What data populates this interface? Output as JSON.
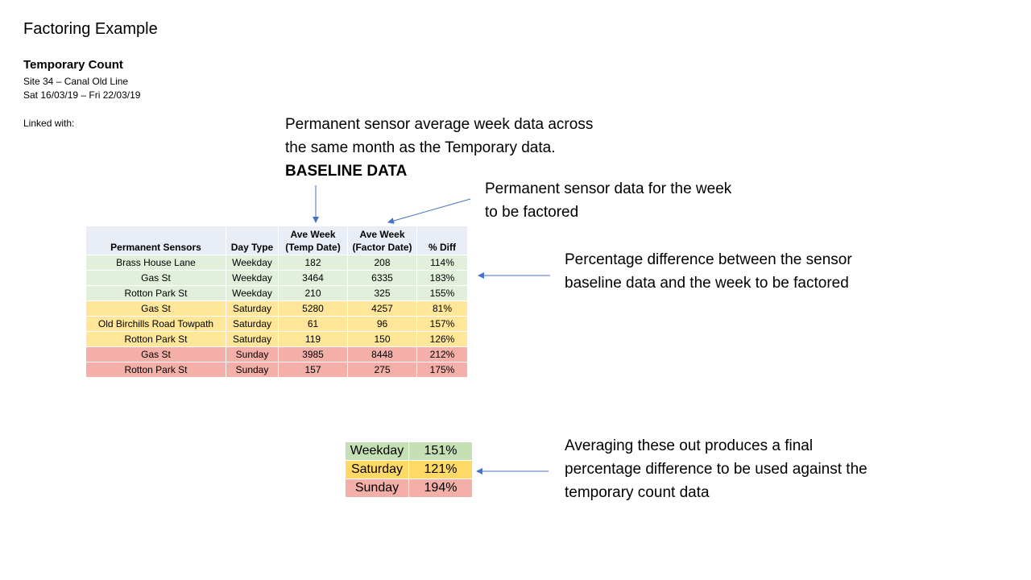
{
  "title": "Factoring Example",
  "temporary": {
    "heading": "Temporary Count",
    "site": "Site 34 – Canal Old Line",
    "dates": "Sat 16/03/19 – Fri 22/03/19",
    "linked": "Linked with:"
  },
  "notes": {
    "baseline_line1": "Permanent sensor average week data across",
    "baseline_line2": "the same month as the Temporary data.",
    "baseline_bold": "BASELINE DATA",
    "factor_line1": "Permanent sensor data for the week",
    "factor_line2": "to be factored",
    "pct_line1": "Percentage difference between the sensor",
    "pct_line2": "baseline data and the week to be factored",
    "avg_line1": "Averaging these out produces a final",
    "avg_line2": "percentage difference to be used against the",
    "avg_line3": "temporary count data"
  },
  "table": {
    "headers": {
      "sensor": "Permanent Sensors",
      "day_type": "Day Type",
      "temp_line1": "Ave Week",
      "temp_line2": "(Temp Date)",
      "factor_line1": "Ave Week",
      "factor_line2": "(Factor Date)",
      "diff": "% Diff"
    },
    "rows": [
      {
        "sensor": "Brass House Lane",
        "day": "Weekday",
        "temp": "182",
        "factor": "208",
        "diff": "114%"
      },
      {
        "sensor": "Gas St",
        "day": "Weekday",
        "temp": "3464",
        "factor": "6335",
        "diff": "183%"
      },
      {
        "sensor": "Rotton Park St",
        "day": "Weekday",
        "temp": "210",
        "factor": "325",
        "diff": "155%"
      },
      {
        "sensor": "Gas St",
        "day": "Saturday",
        "temp": "5280",
        "factor": "4257",
        "diff": "81%"
      },
      {
        "sensor": "Old Birchills Road Towpath",
        "day": "Saturday",
        "temp": "61",
        "factor": "96",
        "diff": "157%"
      },
      {
        "sensor": "Rotton Park St",
        "day": "Saturday",
        "temp": "119",
        "factor": "150",
        "diff": "126%"
      },
      {
        "sensor": "Gas St",
        "day": "Sunday",
        "temp": "3985",
        "factor": "8448",
        "diff": "212%"
      },
      {
        "sensor": "Rotton Park St",
        "day": "Sunday",
        "temp": "157",
        "factor": "275",
        "diff": "175%"
      }
    ]
  },
  "summary": [
    {
      "day": "Weekday",
      "pct": "151%"
    },
    {
      "day": "Saturday",
      "pct": "121%"
    },
    {
      "day": "Sunday",
      "pct": "194%"
    }
  ],
  "colors": {
    "header_bg": "#e9edf5",
    "weekday": "#e2efda",
    "saturday": "#ffe699",
    "sunday": "#f4b0a8",
    "arrow": "#4472c4"
  }
}
